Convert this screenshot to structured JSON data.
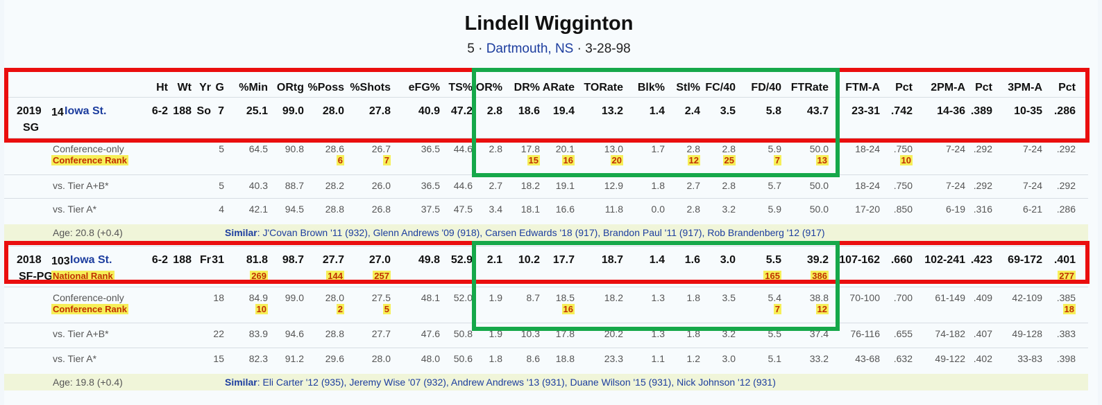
{
  "player": {
    "name": "Lindell Wigginton",
    "number_prefix": "5 ·",
    "hometown": "Dartmouth, NS",
    "dob_suffix": "· 3-28-98"
  },
  "columns": [
    "Ht",
    "Wt",
    "Yr",
    "G",
    "%Min",
    "ORtg",
    "%Poss",
    "%Shots",
    "eFG%",
    "TS%",
    "OR%",
    "DR%",
    "ARate",
    "TORate",
    "Blk%",
    "Stl%",
    "FC/40",
    "FD/40",
    "FTRate",
    "FTM-A",
    "Pct",
    "2PM-A",
    "Pct",
    "3PM-A",
    "Pct"
  ],
  "seasons": [
    {
      "year": "2019",
      "pos": "SG",
      "rank_num": "14",
      "team": "Iowa St.",
      "main": [
        "6-2",
        "188",
        "So",
        "7",
        "25.1",
        "99.0",
        "28.0",
        "27.8",
        "40.9",
        "47.2",
        "2.8",
        "18.6",
        "19.4",
        "13.2",
        "1.4",
        "2.4",
        "3.5",
        "5.8",
        "43.7",
        "23-31",
        ".742",
        "14-36",
        ".389",
        "10-35",
        ".286"
      ],
      "main_rank_label": "",
      "main_ranks": [],
      "sub": [
        {
          "label": "Conference-only",
          "rank_label": "Conference Rank",
          "vals": [
            "",
            "",
            "",
            "5",
            "64.5",
            "90.8",
            "28.6",
            "26.7",
            "36.5",
            "44.6",
            "2.8",
            "17.8",
            "20.1",
            "13.0",
            "1.7",
            "2.8",
            "2.8",
            "5.9",
            "50.0",
            "18-24",
            ".750",
            "7-24",
            ".292",
            "7-24",
            ".292"
          ],
          "ranks": [
            {
              "col": 6,
              "v": "6"
            },
            {
              "col": 7,
              "v": "7"
            },
            {
              "col": 11,
              "v": "15"
            },
            {
              "col": 12,
              "v": "16"
            },
            {
              "col": 13,
              "v": "20"
            },
            {
              "col": 15,
              "v": "12"
            },
            {
              "col": 16,
              "v": "25"
            },
            {
              "col": 17,
              "v": "7"
            },
            {
              "col": 18,
              "v": "13"
            },
            {
              "col": 20,
              "v": "10"
            }
          ]
        },
        {
          "label": "vs. Tier A+B*",
          "rank_label": "",
          "vals": [
            "",
            "",
            "",
            "5",
            "40.3",
            "88.7",
            "28.2",
            "26.0",
            "36.5",
            "44.6",
            "2.7",
            "18.2",
            "19.1",
            "12.9",
            "1.8",
            "2.7",
            "2.8",
            "5.7",
            "50.0",
            "18-24",
            ".750",
            "7-24",
            ".292",
            "7-24",
            ".292"
          ],
          "ranks": []
        },
        {
          "label": "vs. Tier A*",
          "rank_label": "",
          "vals": [
            "",
            "",
            "",
            "4",
            "42.1",
            "94.5",
            "28.8",
            "26.8",
            "37.5",
            "47.5",
            "3.4",
            "18.1",
            "16.6",
            "11.8",
            "0.0",
            "2.8",
            "3.2",
            "5.9",
            "50.0",
            "17-20",
            ".850",
            "6-19",
            ".316",
            "6-21",
            ".286"
          ],
          "ranks": []
        }
      ],
      "age": "Age: 20.8 (+0.4)",
      "similar_label": "Similar",
      "similar": ": J'Covan Brown '11 (932), Glenn Andrews '09 (918), Carsen Edwards '18 (917), Brandon Paul '11 (917), Rob Brandenberg '12 (917)"
    },
    {
      "year": "2018",
      "pos": "SF-PG",
      "rank_num": "103",
      "team": "Iowa St.",
      "main": [
        "6-2",
        "188",
        "Fr",
        "31",
        "81.8",
        "98.7",
        "27.7",
        "27.0",
        "49.8",
        "52.9",
        "2.1",
        "10.2",
        "17.7",
        "18.7",
        "1.4",
        "1.6",
        "3.0",
        "5.5",
        "39.2",
        "107-162",
        ".660",
        "102-241",
        ".423",
        "69-172",
        ".401"
      ],
      "main_rank_label": "National Rank",
      "main_ranks": [
        {
          "col": 4,
          "v": "269"
        },
        {
          "col": 6,
          "v": "144"
        },
        {
          "col": 7,
          "v": "257"
        },
        {
          "col": 17,
          "v": "165"
        },
        {
          "col": 18,
          "v": "386"
        },
        {
          "col": 24,
          "v": "277"
        }
      ],
      "sub": [
        {
          "label": "Conference-only",
          "rank_label": "Conference Rank",
          "vals": [
            "",
            "",
            "",
            "18",
            "84.9",
            "99.0",
            "28.0",
            "27.5",
            "48.1",
            "52.0",
            "1.9",
            "8.7",
            "18.5",
            "18.2",
            "1.3",
            "1.8",
            "3.5",
            "5.4",
            "38.8",
            "70-100",
            ".700",
            "61-149",
            ".409",
            "42-109",
            ".385"
          ],
          "ranks": [
            {
              "col": 4,
              "v": "10"
            },
            {
              "col": 6,
              "v": "2"
            },
            {
              "col": 7,
              "v": "5"
            },
            {
              "col": 12,
              "v": "16"
            },
            {
              "col": 17,
              "v": "7"
            },
            {
              "col": 18,
              "v": "12"
            },
            {
              "col": 24,
              "v": "18"
            }
          ]
        },
        {
          "label": "vs. Tier A+B*",
          "rank_label": "",
          "vals": [
            "",
            "",
            "",
            "22",
            "83.9",
            "94.6",
            "28.8",
            "27.7",
            "47.6",
            "50.8",
            "1.9",
            "10.3",
            "17.8",
            "20.2",
            "1.3",
            "1.8",
            "3.2",
            "5.5",
            "37.4",
            "76-116",
            ".655",
            "74-182",
            ".407",
            "49-128",
            ".383"
          ],
          "ranks": []
        },
        {
          "label": "vs. Tier A*",
          "rank_label": "",
          "vals": [
            "",
            "",
            "",
            "15",
            "82.3",
            "91.2",
            "29.6",
            "28.0",
            "48.0",
            "50.6",
            "1.8",
            "8.6",
            "18.8",
            "23.3",
            "1.1",
            "1.2",
            "3.0",
            "5.1",
            "33.2",
            "43-68",
            ".632",
            "49-122",
            ".402",
            "33-83",
            ".398"
          ],
          "ranks": []
        }
      ],
      "age": "Age: 19.8 (+0.4)",
      "similar_label": "Similar",
      "similar": ": Eli Carter '12 (935), Jeremy Wise '07 (932), Andrew Andrews '13 (931), Duane Wilson '15 (931), Nick Johnson '12 (931)"
    }
  ],
  "colors": {
    "red_box": "#ea0e0e",
    "green_box": "#16a84a",
    "link": "#1c3d9e",
    "rank_bg": "#f6ef58",
    "rank_text": "#c03000"
  }
}
